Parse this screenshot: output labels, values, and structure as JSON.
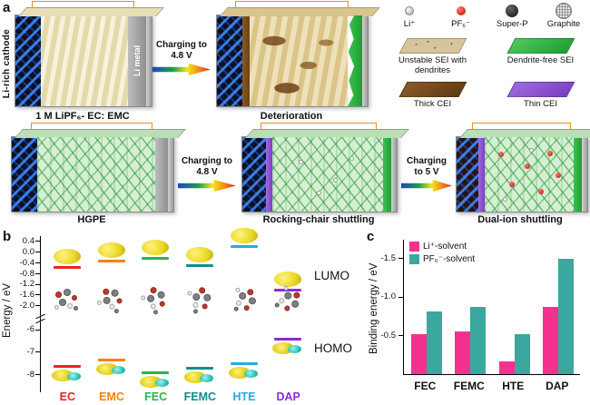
{
  "panels": {
    "a": "a",
    "b": "b",
    "c": "c"
  },
  "panel_a": {
    "cell1": {
      "left_label": "Li-rich cathode",
      "right_label": "Li metal",
      "caption": "1 M LiPF₆- EC: EMC"
    },
    "arrow_top": "Charging to 4.8 V",
    "cell2_caption": "Deterioration",
    "legend": {
      "particles": [
        {
          "label": "Li⁺"
        },
        {
          "label": "PF₆⁻"
        },
        {
          "label": "Super-P"
        },
        {
          "label": "Graphite"
        }
      ],
      "patches": [
        {
          "label": "Unstable SEI with dendrites"
        },
        {
          "label": "Dendrite-free SEI"
        },
        {
          "label": "Thick CEI"
        },
        {
          "label": "Thin CEI"
        }
      ]
    },
    "cell3_caption": "HGPE",
    "arrow_b1": "Charging to 4.8 V",
    "cell4_caption": "Rocking-chair shuttling",
    "arrow_b2": "Charging to 5 V",
    "cell5_caption": "Dual-ion shuttling"
  },
  "panel_b": {
    "ylabel": "Energy /  eV",
    "lumo": "LUMO",
    "homo": "HOMO"
  },
  "panel_c": {
    "ylabel": "Binding energy / eV"
  },
  "chart_data": [
    {
      "type": "energy_levels",
      "panel": "b",
      "ylabel": "Energy / eV",
      "categories": [
        "EC",
        "EMC",
        "FEC",
        "FEMC",
        "HTE",
        "DAP"
      ],
      "colors": [
        "#e8251f",
        "#f5820b",
        "#2bb34b",
        "#0d8f8a",
        "#2aa9e0",
        "#8d2bd6"
      ],
      "series": [
        {
          "name": "LUMO",
          "values": [
            -0.5,
            -0.28,
            -0.18,
            -0.45,
            0.25,
            -1.35
          ]
        },
        {
          "name": "HOMO",
          "values": [
            -7.55,
            -7.3,
            -7.85,
            -7.65,
            -7.45,
            -6.35
          ]
        }
      ],
      "yticks_upper": [
        0.4,
        0.0,
        -0.4,
        -0.8,
        -1.2,
        -1.6,
        -2.0
      ],
      "yticks_lower": [
        -6,
        -7,
        -8
      ],
      "axis_break": true,
      "upper_range": [
        0.6,
        -2.3
      ],
      "lower_range": [
        -5.7,
        -8.7
      ]
    },
    {
      "type": "bar",
      "panel": "c",
      "ylabel": "Binding energy / eV",
      "categories": [
        "FEC",
        "FEMC",
        "HTE",
        "DAP"
      ],
      "series": [
        {
          "name": "Li⁺-solvent",
          "color": "#f5318e",
          "values": [
            -0.52,
            -0.56,
            -0.17,
            -0.88
          ]
        },
        {
          "name": "PF₆⁻-solvent",
          "color": "#3aa89f",
          "values": [
            -0.82,
            -0.88,
            -0.52,
            -1.5
          ]
        }
      ],
      "ylim": [
        0,
        -1.75
      ],
      "yticks": [
        -0.5,
        -1.0,
        -1.5
      ],
      "legend_position": "top-left",
      "grid": false
    }
  ]
}
